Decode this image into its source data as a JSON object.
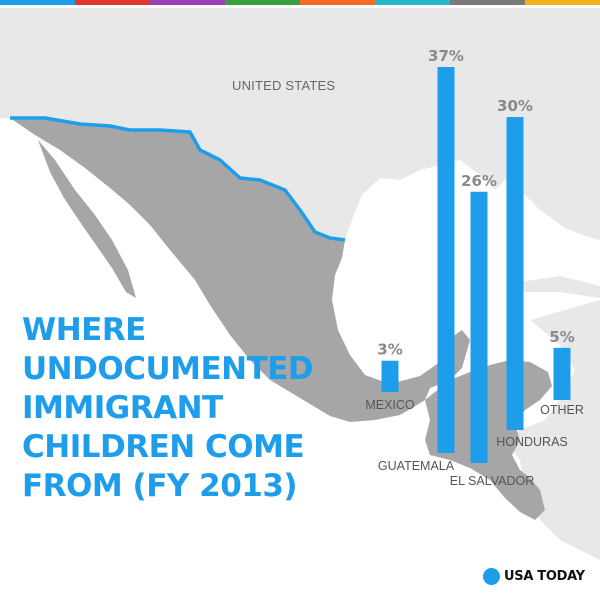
{
  "top_bar_colors": [
    "#1e9eea",
    "#e0372e",
    "#9b3fb5",
    "#3a9e3f",
    "#f26d21",
    "#27b9c9",
    "#7a7a7a",
    "#f2b31a"
  ],
  "title_lines": [
    "WHERE",
    "UNDOCUMENTED",
    "IMMIGRANT",
    "CHILDREN COME",
    "FROM (FY 2013)"
  ],
  "map_labels": {
    "united_states": "UNITED STATES"
  },
  "brand": {
    "name": "USA TODAY",
    "color": "#1e9eea"
  },
  "chart_data": {
    "type": "bar",
    "categories": [
      "MEXICO",
      "GUATEMALA",
      "EL SALVADOR",
      "HONDURAS",
      "OTHER"
    ],
    "values": [
      3,
      37,
      26,
      30,
      5
    ],
    "value_labels": [
      "3%",
      "37%",
      "26%",
      "30%",
      "5%"
    ],
    "ylim": [
      0,
      37
    ],
    "bar_color": "#1e9eea",
    "grid": false
  }
}
